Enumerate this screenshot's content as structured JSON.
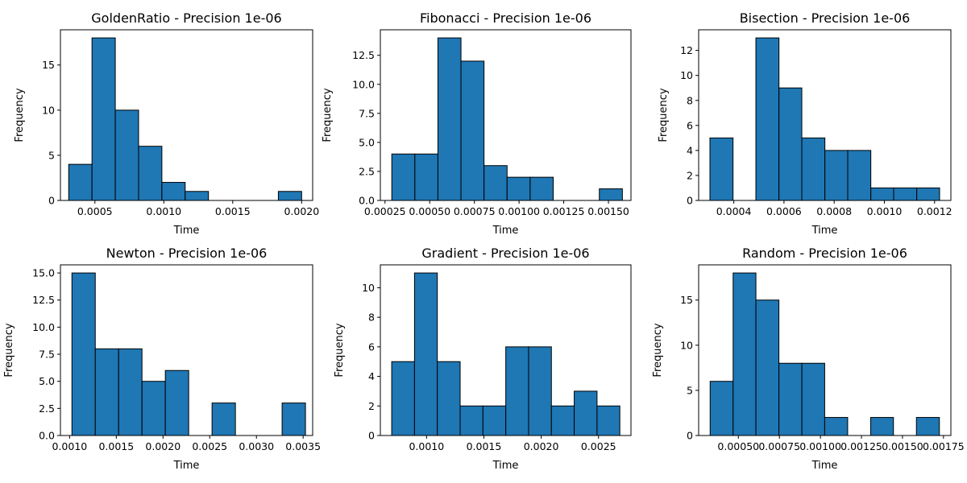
{
  "chart_data": [
    {
      "type": "bar",
      "title": "GoldenRatio - Precision 1e-06",
      "xlabel": "Time",
      "ylabel": "Frequency",
      "xlim": [
        0.00025,
        0.00208
      ],
      "ylim": [
        0,
        18.9
      ],
      "bin_edges": [
        0.00031,
        0.000479,
        0.000648,
        0.000817,
        0.000986,
        0.001155,
        0.001324,
        0.001493,
        0.001662,
        0.001831,
        0.002
      ],
      "values": [
        4,
        18,
        10,
        6,
        2,
        1,
        0,
        0,
        0,
        1
      ],
      "xticks": [
        0.0005,
        0.001,
        0.0015,
        0.002
      ],
      "xtick_labels": [
        "0.0005",
        "0.0010",
        "0.0015",
        "0.0020"
      ],
      "yticks": [
        0,
        5,
        10,
        15
      ],
      "ytick_labels": [
        "0",
        "5",
        "10",
        "15"
      ],
      "color": "#1f77b4"
    },
    {
      "type": "bar",
      "title": "Fibonacci - Precision 1e-06",
      "xlabel": "Time",
      "ylabel": "Frequency",
      "xlim": [
        0.000224,
        0.001626
      ],
      "ylim": [
        0,
        14.7
      ],
      "bin_edges": [
        0.000288,
        0.000417,
        0.000546,
        0.000675,
        0.000804,
        0.000933,
        0.001062,
        0.001191,
        0.00132,
        0.001449,
        0.001578
      ],
      "values": [
        4,
        4,
        14,
        12,
        3,
        2,
        2,
        0,
        0,
        1
      ],
      "xticks": [
        0.00025,
        0.0005,
        0.00075,
        0.001,
        0.00125,
        0.0015
      ],
      "xtick_labels": [
        "0.00025",
        "0.00050",
        "0.00075",
        "0.00100",
        "0.00125",
        "0.00150"
      ],
      "yticks": [
        0,
        2.5,
        5,
        7.5,
        10,
        12.5
      ],
      "ytick_labels": [
        "0.0",
        "2.5",
        "5.0",
        "7.5",
        "10.0",
        "12.5"
      ],
      "color": "#1f77b4"
    },
    {
      "type": "bar",
      "title": "Bisection - Precision 1e-06",
      "xlabel": "Time",
      "ylabel": "Frequency",
      "xlim": [
        0.00026,
        0.001265
      ],
      "ylim": [
        0,
        13.65
      ],
      "bin_edges": [
        0.000305,
        0.000397,
        0.000488,
        0.00058,
        0.000671,
        0.000763,
        0.000854,
        0.000946,
        0.001037,
        0.001129,
        0.00122
      ],
      "values": [
        5,
        0,
        13,
        9,
        5,
        4,
        4,
        1,
        1,
        1
      ],
      "xticks": [
        0.0004,
        0.0006,
        0.0008,
        0.001,
        0.0012
      ],
      "xtick_labels": [
        "0.0004",
        "0.0006",
        "0.0008",
        "0.0010",
        "0.0012"
      ],
      "yticks": [
        0,
        2,
        4,
        6,
        8,
        10,
        12
      ],
      "ytick_labels": [
        "0",
        "2",
        "4",
        "6",
        "8",
        "10",
        "12"
      ],
      "color": "#1f77b4"
    },
    {
      "type": "bar",
      "title": "Newton - Precision 1e-06",
      "xlabel": "Time",
      "ylabel": "Frequency",
      "xlim": [
        0.000902,
        0.003602
      ],
      "ylim": [
        0,
        15.75
      ],
      "bin_edges": [
        0.001025,
        0.001275,
        0.001525,
        0.001775,
        0.002025,
        0.002275,
        0.002525,
        0.002775,
        0.003025,
        0.003275,
        0.003525
      ],
      "values": [
        15,
        8,
        8,
        5,
        6,
        0,
        3,
        0,
        0,
        3
      ],
      "xticks": [
        0.001,
        0.0015,
        0.002,
        0.0025,
        0.003,
        0.0035
      ],
      "xtick_labels": [
        "0.0010",
        "0.0015",
        "0.0020",
        "0.0025",
        "0.0030",
        "0.0035"
      ],
      "yticks": [
        0,
        2.5,
        5,
        7.5,
        10,
        12.5,
        15
      ],
      "ytick_labels": [
        "0.0",
        "2.5",
        "5.0",
        "7.5",
        "10.0",
        "12.5",
        "15.0"
      ],
      "color": "#1f77b4"
    },
    {
      "type": "bar",
      "title": "Gradient - Precision 1e-06",
      "xlabel": "Time",
      "ylabel": "Frequency",
      "xlim": [
        0.000597,
        0.002783
      ],
      "ylim": [
        0,
        11.55
      ],
      "bin_edges": [
        0.000696,
        0.000895,
        0.001094,
        0.001293,
        0.001492,
        0.001691,
        0.00189,
        0.002089,
        0.002288,
        0.002487,
        0.002686
      ],
      "values": [
        5,
        11,
        5,
        2,
        2,
        6,
        6,
        2,
        3,
        2
      ],
      "xticks": [
        0.001,
        0.0015,
        0.002,
        0.0025
      ],
      "xtick_labels": [
        "0.0010",
        "0.0015",
        "0.0020",
        "0.0025"
      ],
      "yticks": [
        0,
        2,
        4,
        6,
        8,
        10
      ],
      "ytick_labels": [
        "0",
        "2",
        "4",
        "6",
        "8",
        "10"
      ],
      "color": "#1f77b4"
    },
    {
      "type": "bar",
      "title": "Random - Precision 1e-06",
      "xlabel": "Time",
      "ylabel": "Frequency",
      "xlim": [
        0.000258,
        0.001795
      ],
      "ylim": [
        0,
        18.9
      ],
      "bin_edges": [
        0.000328,
        0.000468,
        0.000607,
        0.000747,
        0.000887,
        0.001026,
        0.001166,
        0.001306,
        0.001445,
        0.001585,
        0.001725
      ],
      "values": [
        6,
        18,
        15,
        8,
        8,
        2,
        0,
        2,
        0,
        2
      ],
      "xticks": [
        0.0005,
        0.00075,
        0.001,
        0.00125,
        0.0015,
        0.00175
      ],
      "xtick_labels": [
        "0.00050",
        "0.00075",
        "0.00100",
        "0.00125",
        "0.00150",
        "0.00175"
      ],
      "yticks": [
        0,
        5,
        10,
        15
      ],
      "ytick_labels": [
        "0",
        "5",
        "10",
        "15"
      ],
      "color": "#1f77b4"
    }
  ]
}
